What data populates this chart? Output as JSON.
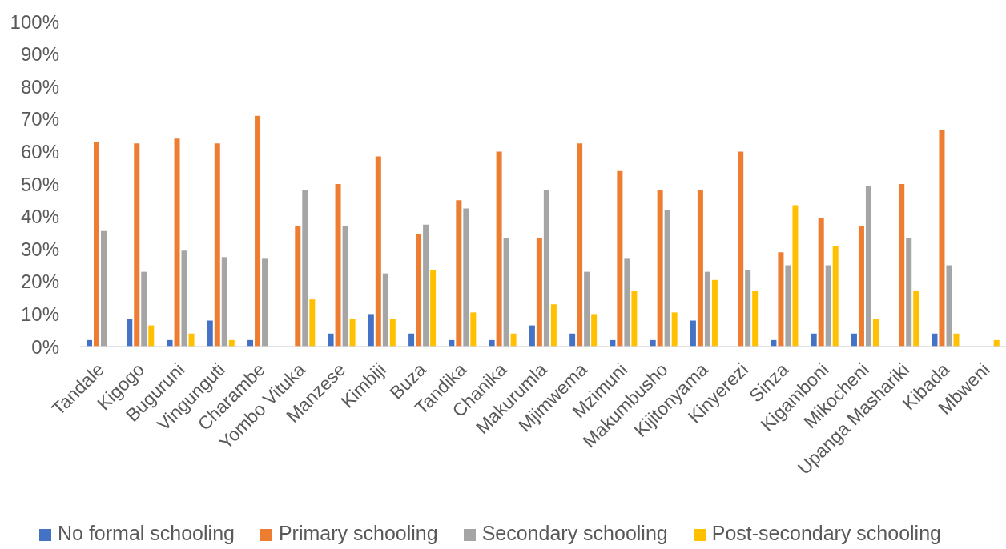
{
  "chart_data": {
    "type": "bar",
    "categories": [
      "Tandale",
      "Kigogo",
      "Buguruni",
      "Vingunguti",
      "Charambe",
      "Yombo Vituka",
      "Manzese",
      "Kimbiji",
      "Buza",
      "Tandika",
      "Chanika",
      "Makurumla",
      "Mjimwema",
      "Mzimuni",
      "Makumbusho",
      "Kijitonyama",
      "Kinyerezi",
      "Sinza",
      "Kigamboni",
      "Mikocheni",
      "Upanga Mashariki",
      "Kibada",
      "Mbweni"
    ],
    "series": [
      {
        "name": "No formal schooling",
        "color": "#4472c4",
        "values": [
          2,
          8.5,
          2,
          8,
          2,
          0,
          4,
          10,
          4,
          2,
          2,
          6.5,
          4,
          2,
          2,
          8,
          0,
          2,
          4,
          4,
          0,
          4,
          0
        ]
      },
      {
        "name": "Primary schooling",
        "color": "#ed7d31",
        "values": [
          63,
          62.5,
          64,
          62.5,
          71,
          37,
          50,
          58.5,
          34.5,
          45,
          60,
          33.5,
          62.5,
          54,
          48,
          48,
          60,
          29,
          39.5,
          37,
          50,
          66.5,
          0
        ]
      },
      {
        "name": "Secondary schooling",
        "color": "#a5a5a5",
        "values": [
          35.5,
          23,
          29.5,
          27.5,
          27,
          48,
          37,
          22.5,
          37.5,
          42.5,
          33.5,
          48,
          23,
          27,
          42,
          23,
          23.5,
          25,
          25,
          49.5,
          33.5,
          25,
          0
        ]
      },
      {
        "name": "Post-secondary schooling",
        "color": "#ffc000",
        "values": [
          0,
          6.5,
          4,
          2,
          0,
          14.5,
          8.5,
          8.5,
          23.5,
          10.5,
          4,
          13,
          10,
          17,
          10.5,
          20.5,
          17,
          43.5,
          31,
          8.5,
          17,
          4,
          2
        ]
      }
    ],
    "ylim": [
      0,
      100
    ],
    "yticks": [
      {
        "value": 0,
        "label": "0%"
      },
      {
        "value": 10,
        "label": "10%"
      },
      {
        "value": 20,
        "label": "20%"
      },
      {
        "value": 30,
        "label": "30%"
      },
      {
        "value": 40,
        "label": "40%"
      },
      {
        "value": 50,
        "label": "50%"
      },
      {
        "value": 60,
        "label": "60%"
      },
      {
        "value": 70,
        "label": "70%"
      },
      {
        "value": 80,
        "label": "80%"
      },
      {
        "value": 90,
        "label": "90%"
      },
      {
        "value": 100,
        "label": "100%"
      }
    ],
    "legend": "bottom"
  }
}
